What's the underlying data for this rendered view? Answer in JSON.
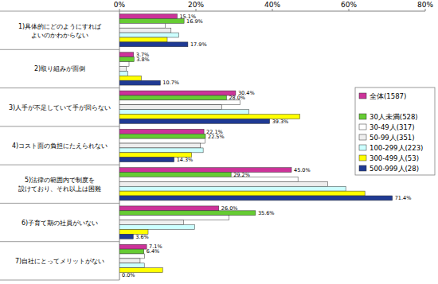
{
  "chart_data": {
    "type": "bar",
    "orientation": "horizontal",
    "categories": [
      "1)具体的にどのようにすれば\nよいのかわからない",
      "2)取り組みが面倒",
      "3)人手が不足していて手が回らない",
      "4)コスト面の負担にたえられない",
      "5)法律の範囲内で制度を\n設けており、それ以上は困難",
      "6)子育て期の社員がいない",
      "7)自社にとってメリットがない"
    ],
    "series": [
      {
        "name": "全体(1587)",
        "color": "#cc3399",
        "values": [
          15.1,
          3.7,
          30.4,
          22.1,
          45.0,
          26.0,
          7.1
        ],
        "value_labels": [
          "15.1%",
          "3.7%",
          "30.4%",
          "22.1%",
          "45.0%",
          "26.0%",
          "7.1%"
        ]
      },
      {
        "name": "30人未満(528)",
        "color": "#66cc33",
        "values": [
          16.9,
          3.8,
          28.0,
          22.5,
          29.2,
          35.6,
          6.4
        ],
        "value_labels": [
          "16.9%",
          "3.8%",
          "28.0%",
          "22.5%",
          "29.2%",
          "35.6%",
          "6.4%"
        ]
      },
      {
        "name": "30-49人(317)",
        "color": "#ffffff",
        "values": [
          12.0,
          2.5,
          31.5,
          22.4,
          46.7,
          28.7,
          6.6
        ]
      },
      {
        "name": "50-99人(351)",
        "color": "#eeeeee",
        "values": [
          13.5,
          1.8,
          26.8,
          21.2,
          54.5,
          16.8,
          5.4
        ]
      },
      {
        "name": "100-299人(223)",
        "color": "#ccffff",
        "values": [
          15.5,
          2.2,
          33.9,
          21.9,
          59.2,
          19.7,
          6.5
        ]
      },
      {
        "name": "300-499人(53)",
        "color": "#ffff00",
        "values": [
          12.5,
          5.7,
          47.2,
          18.9,
          64.2,
          7.5,
          11.3
        ]
      },
      {
        "name": "500-999人(28)",
        "color": "#1f3a93",
        "values": [
          17.9,
          10.7,
          39.3,
          14.3,
          71.4,
          3.6,
          0.0
        ],
        "value_labels": [
          "17.9%",
          "10.7%",
          "39.3%",
          "14.3%",
          "71.4%",
          "3.6%",
          "0.0%"
        ]
      }
    ],
    "xlim": [
      0,
      80
    ],
    "xticks": [
      {
        "value": 0,
        "label": "0%"
      },
      {
        "value": 20,
        "label": "20%"
      },
      {
        "value": 40,
        "label": "40%"
      },
      {
        "value": 60,
        "label": "60%"
      },
      {
        "value": 80,
        "label": "80%"
      }
    ],
    "grid": false,
    "legend": "right",
    "data_labels": true
  }
}
